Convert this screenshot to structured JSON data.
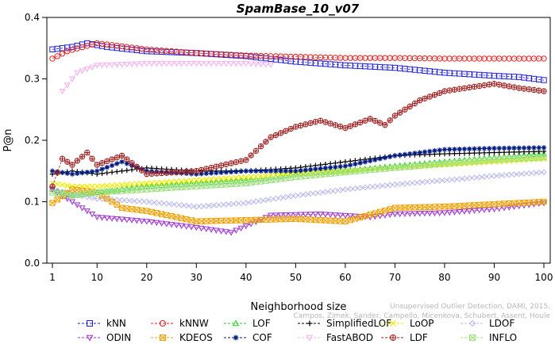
{
  "chart_data": {
    "type": "line",
    "title": "SpamBase_10_v07",
    "xlabel": "Neighborhood size",
    "ylabel": "P@n",
    "xlim": [
      1,
      100
    ],
    "ylim": [
      0,
      0.4
    ],
    "xticks": [
      "1",
      "10",
      "20",
      "30",
      "40",
      "50",
      "60",
      "70",
      "80",
      "90",
      "100"
    ],
    "yticks": [
      "0.0",
      "0.1",
      "0.2",
      "0.3",
      "0.4"
    ],
    "legend_position": "bottom",
    "series": [
      {
        "name": "kNN",
        "color": "#1f1fe0",
        "marker": "square",
        "points": [
          [
            1,
            0.348
          ],
          [
            5,
            0.352
          ],
          [
            8,
            0.358
          ],
          [
            12,
            0.352
          ],
          [
            20,
            0.345
          ],
          [
            30,
            0.342
          ],
          [
            40,
            0.337
          ],
          [
            50,
            0.328
          ],
          [
            60,
            0.322
          ],
          [
            70,
            0.318
          ],
          [
            80,
            0.31
          ],
          [
            90,
            0.305
          ],
          [
            95,
            0.303
          ],
          [
            100,
            0.298
          ]
        ]
      },
      {
        "name": "kNNW",
        "color": "#e02020",
        "marker": "circle",
        "points": [
          [
            1,
            0.333
          ],
          [
            4,
            0.345
          ],
          [
            10,
            0.358
          ],
          [
            20,
            0.348
          ],
          [
            30,
            0.342
          ],
          [
            40,
            0.338
          ],
          [
            50,
            0.336
          ],
          [
            60,
            0.334
          ],
          [
            70,
            0.334
          ],
          [
            80,
            0.333
          ],
          [
            90,
            0.333
          ],
          [
            100,
            0.333
          ]
        ]
      },
      {
        "name": "LOF",
        "color": "#22cc22",
        "marker": "triangle-up",
        "points": [
          [
            1,
            0.12
          ],
          [
            5,
            0.11
          ],
          [
            10,
            0.115
          ],
          [
            20,
            0.125
          ],
          [
            30,
            0.13
          ],
          [
            40,
            0.135
          ],
          [
            50,
            0.145
          ],
          [
            60,
            0.15
          ],
          [
            70,
            0.158
          ],
          [
            80,
            0.165
          ],
          [
            90,
            0.172
          ],
          [
            100,
            0.178
          ]
        ]
      },
      {
        "name": "SimplifiedLOF",
        "color": "#000000",
        "marker": "plus",
        "points": [
          [
            1,
            0.145
          ],
          [
            5,
            0.15
          ],
          [
            10,
            0.145
          ],
          [
            20,
            0.155
          ],
          [
            30,
            0.15
          ],
          [
            40,
            0.15
          ],
          [
            50,
            0.155
          ],
          [
            60,
            0.165
          ],
          [
            70,
            0.175
          ],
          [
            80,
            0.178
          ],
          [
            90,
            0.18
          ],
          [
            100,
            0.182
          ]
        ]
      },
      {
        "name": "LoOP",
        "color": "#eeee00",
        "marker": "x",
        "points": [
          [
            1,
            0.13
          ],
          [
            5,
            0.125
          ],
          [
            10,
            0.125
          ],
          [
            20,
            0.13
          ],
          [
            30,
            0.135
          ],
          [
            40,
            0.14
          ],
          [
            50,
            0.145
          ],
          [
            60,
            0.15
          ],
          [
            70,
            0.155
          ],
          [
            80,
            0.16
          ],
          [
            90,
            0.165
          ],
          [
            100,
            0.17
          ]
        ]
      },
      {
        "name": "LDOF",
        "color": "#b8b8f0",
        "marker": "diamond",
        "points": [
          [
            1,
            0.12
          ],
          [
            5,
            0.112
          ],
          [
            10,
            0.105
          ],
          [
            20,
            0.1
          ],
          [
            30,
            0.092
          ],
          [
            40,
            0.098
          ],
          [
            50,
            0.11
          ],
          [
            60,
            0.12
          ],
          [
            70,
            0.128
          ],
          [
            80,
            0.135
          ],
          [
            90,
            0.142
          ],
          [
            100,
            0.148
          ]
        ]
      },
      {
        "name": "ODIN",
        "color": "#9b30d0",
        "marker": "triangle-down",
        "points": [
          [
            1,
            0.12
          ],
          [
            5,
            0.1
          ],
          [
            10,
            0.075
          ],
          [
            20,
            0.068
          ],
          [
            30,
            0.058
          ],
          [
            37,
            0.05
          ],
          [
            45,
            0.078
          ],
          [
            55,
            0.08
          ],
          [
            65,
            0.075
          ],
          [
            70,
            0.08
          ],
          [
            80,
            0.082
          ],
          [
            90,
            0.088
          ],
          [
            100,
            0.098
          ]
        ]
      },
      {
        "name": "KDEOS",
        "color": "#f0a000",
        "marker": "square-x",
        "points": [
          [
            1,
            0.098
          ],
          [
            5,
            0.12
          ],
          [
            10,
            0.115
          ],
          [
            15,
            0.09
          ],
          [
            20,
            0.085
          ],
          [
            30,
            0.068
          ],
          [
            40,
            0.07
          ],
          [
            50,
            0.072
          ],
          [
            60,
            0.068
          ],
          [
            70,
            0.09
          ],
          [
            80,
            0.092
          ],
          [
            90,
            0.096
          ],
          [
            100,
            0.1
          ]
        ]
      },
      {
        "name": "COF",
        "color": "#001a80",
        "marker": "asterisk",
        "points": [
          [
            1,
            0.15
          ],
          [
            5,
            0.145
          ],
          [
            10,
            0.15
          ],
          [
            15,
            0.165
          ],
          [
            20,
            0.15
          ],
          [
            30,
            0.145
          ],
          [
            40,
            0.15
          ],
          [
            50,
            0.15
          ],
          [
            60,
            0.158
          ],
          [
            70,
            0.175
          ],
          [
            80,
            0.185
          ],
          [
            90,
            0.187
          ],
          [
            100,
            0.188
          ]
        ]
      },
      {
        "name": "FastABOD",
        "color": "#f5b0f0",
        "marker": "triangle-down",
        "points": [
          [
            3,
            0.28
          ],
          [
            6,
            0.31
          ],
          [
            10,
            0.322
          ],
          [
            20,
            0.325
          ],
          [
            30,
            0.325
          ],
          [
            40,
            0.325
          ],
          [
            45,
            0.323
          ]
        ]
      },
      {
        "name": "LDF",
        "color": "#a02020",
        "marker": "circle-plus",
        "points": [
          [
            1,
            0.125
          ],
          [
            3,
            0.17
          ],
          [
            5,
            0.16
          ],
          [
            8,
            0.18
          ],
          [
            10,
            0.16
          ],
          [
            15,
            0.175
          ],
          [
            20,
            0.145
          ],
          [
            30,
            0.15
          ],
          [
            40,
            0.168
          ],
          [
            45,
            0.205
          ],
          [
            50,
            0.222
          ],
          [
            55,
            0.232
          ],
          [
            60,
            0.22
          ],
          [
            65,
            0.235
          ],
          [
            68,
            0.225
          ],
          [
            70,
            0.24
          ],
          [
            75,
            0.265
          ],
          [
            80,
            0.28
          ],
          [
            90,
            0.292
          ],
          [
            95,
            0.285
          ],
          [
            100,
            0.28
          ]
        ]
      },
      {
        "name": "INFLO",
        "color": "#a0e080",
        "marker": "square-x",
        "points": [
          [
            1,
            0.115
          ],
          [
            5,
            0.11
          ],
          [
            10,
            0.115
          ],
          [
            20,
            0.12
          ],
          [
            30,
            0.125
          ],
          [
            40,
            0.13
          ],
          [
            50,
            0.14
          ],
          [
            60,
            0.148
          ],
          [
            70,
            0.155
          ],
          [
            80,
            0.162
          ],
          [
            90,
            0.168
          ],
          [
            100,
            0.172
          ]
        ]
      }
    ]
  },
  "watermark": {
    "line1": "Unsupervised Outlier Detection, DAMI, 2015.",
    "line2": "Campos, Zimek, Sander, Campello, Micenkova, Schubert, Assent, Houle"
  }
}
